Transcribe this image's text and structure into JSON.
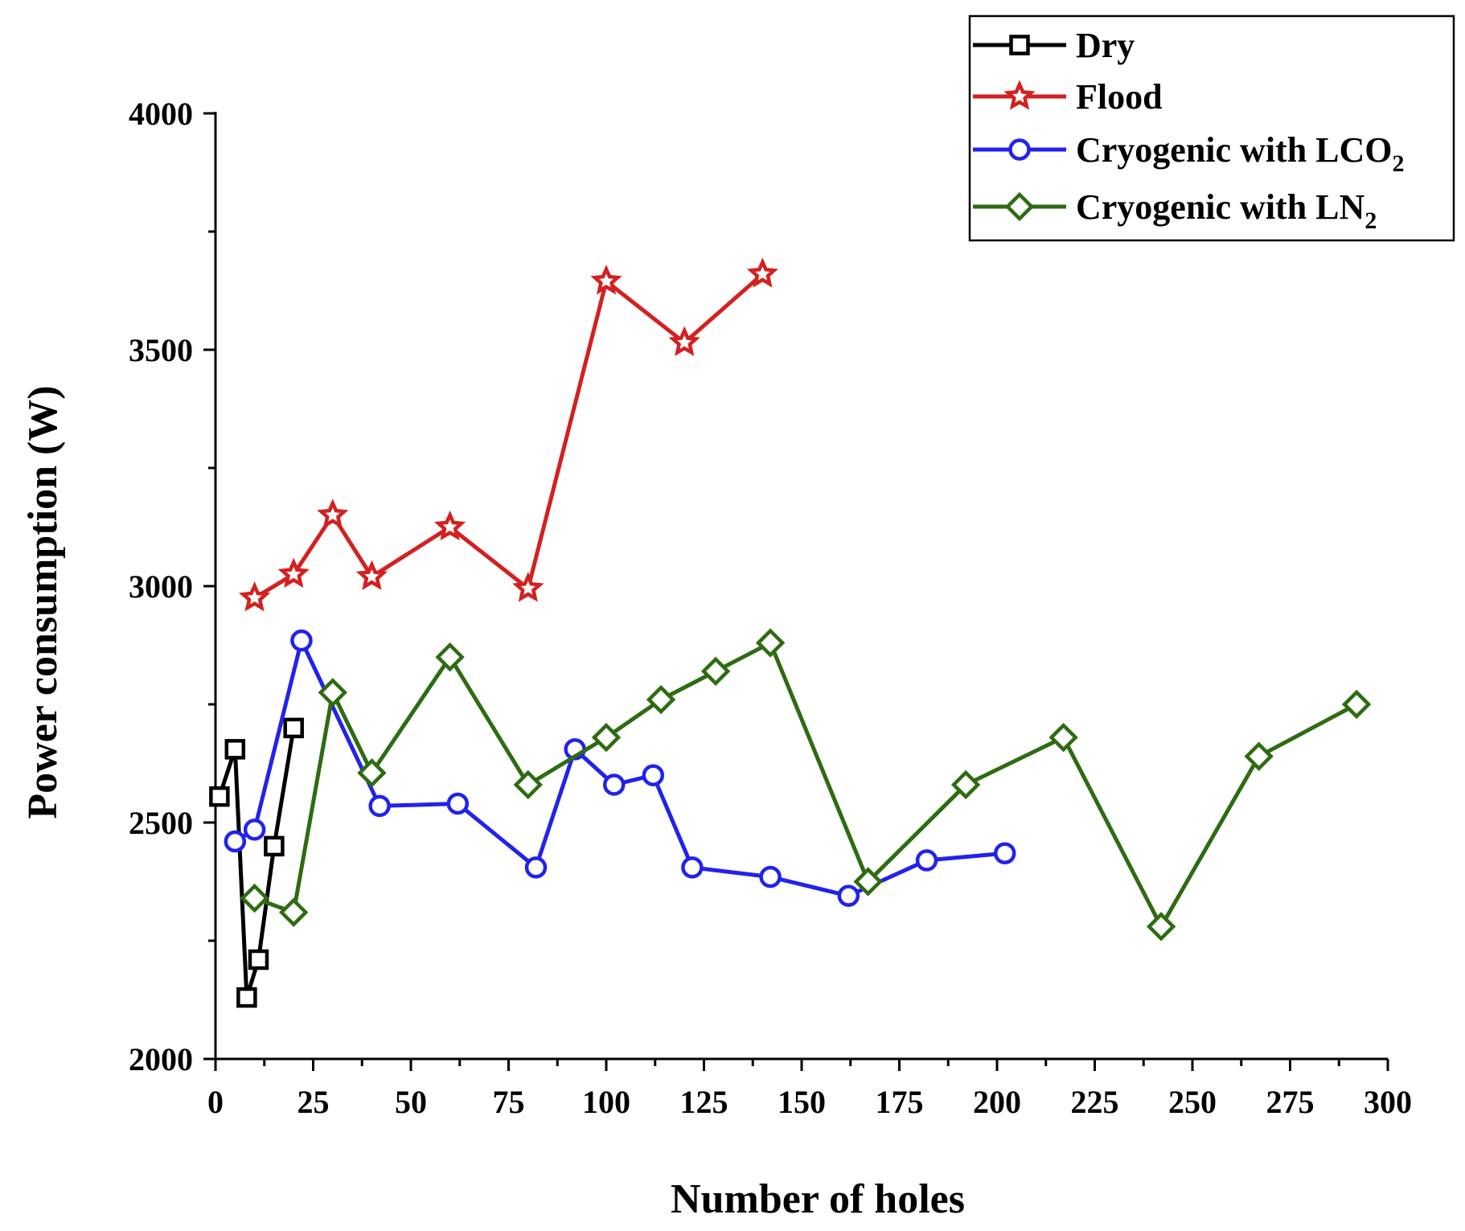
{
  "chart_data": {
    "type": "line",
    "xlabel": "Number of holes",
    "ylabel": "Power consumption (W)",
    "xlim": [
      0,
      300
    ],
    "ylim": [
      2000,
      4000
    ],
    "xticks": [
      0,
      25,
      50,
      75,
      100,
      125,
      150,
      175,
      200,
      225,
      250,
      275,
      300
    ],
    "xtick_labels": [
      "0",
      "25",
      "50",
      "75",
      "100",
      "125",
      "150",
      "175",
      "200",
      "225",
      "250",
      "275",
      "300"
    ],
    "yticks": [
      2000,
      2500,
      3000,
      3500,
      4000
    ],
    "ytick_labels": [
      "2000",
      "2500",
      "3000",
      "3500",
      "4000"
    ],
    "grid": false,
    "legend_position": "top-right",
    "series": [
      {
        "name": "Dry",
        "legend_base": "Dry",
        "legend_sub": "",
        "color": "#000000",
        "marker": "square",
        "x": [
          1,
          5,
          8,
          11,
          15,
          20
        ],
        "y": [
          2555,
          2655,
          2130,
          2210,
          2450,
          2700
        ]
      },
      {
        "name": "Flood",
        "legend_base": "Flood",
        "legend_sub": "",
        "color": "#d42020",
        "marker": "star",
        "x": [
          10,
          20,
          30,
          40,
          60,
          80,
          100,
          120,
          140
        ],
        "y": [
          2975,
          3025,
          3150,
          3020,
          3125,
          2995,
          3645,
          3515,
          3660
        ]
      },
      {
        "name": "Cryogenic with LCO2",
        "legend_base": "Cryogenic with LCO",
        "legend_sub": "2",
        "color": "#2222ee",
        "marker": "circle",
        "x": [
          5,
          10,
          22,
          42,
          62,
          82,
          92,
          102,
          112,
          122,
          142,
          162,
          182,
          202
        ],
        "y": [
          2460,
          2485,
          2885,
          2535,
          2540,
          2405,
          2655,
          2580,
          2600,
          2405,
          2385,
          2345,
          2420,
          2435
        ]
      },
      {
        "name": "Cryogenic with LN2",
        "legend_base": "Cryogenic with LN",
        "legend_sub": "2",
        "color": "#2e6b12",
        "marker": "diamond",
        "x": [
          10,
          20,
          30,
          40,
          60,
          80,
          100,
          114,
          128,
          142,
          167,
          192,
          217,
          242,
          267,
          292
        ],
        "y": [
          2340,
          2310,
          2775,
          2605,
          2850,
          2580,
          2680,
          2760,
          2820,
          2880,
          2375,
          2580,
          2680,
          2280,
          2640,
          2750
        ]
      }
    ]
  }
}
